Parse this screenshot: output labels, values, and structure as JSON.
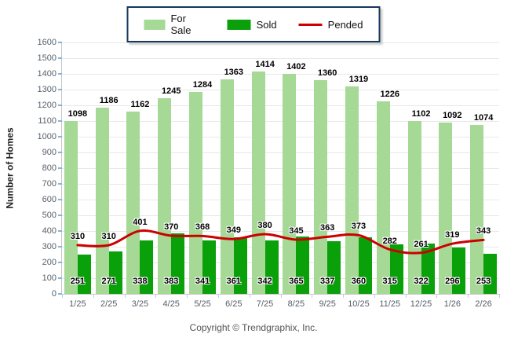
{
  "legend": {
    "items": [
      {
        "label": "For Sale"
      },
      {
        "label": "Sold"
      },
      {
        "label": "Pended"
      }
    ]
  },
  "copyright": "Copyright © Trendgraphix, Inc.",
  "colors": {
    "for_sale": "#a5d995",
    "sold": "#0aa00a",
    "pended": "#cc0000",
    "grid": "#e8e8e8",
    "axis": "#c6c6c6",
    "tick_text": "#57606a",
    "legend_border": "#17375d"
  },
  "chart_data": {
    "type": "bar",
    "title": "",
    "xlabel": "",
    "ylabel": "Number of Homes",
    "ylim": [
      0,
      1600
    ],
    "yticks": [
      0,
      100,
      200,
      300,
      400,
      500,
      600,
      700,
      800,
      900,
      1000,
      1100,
      1200,
      1300,
      1400,
      1500,
      1600
    ],
    "grid": true,
    "legend_position": "top-center",
    "categories": [
      "1/25",
      "2/25",
      "3/25",
      "4/25",
      "5/25",
      "6/25",
      "7/25",
      "8/25",
      "9/25",
      "10/25",
      "11/25",
      "12/25",
      "1/26",
      "2/26"
    ],
    "series": [
      {
        "name": "For Sale",
        "type": "bar",
        "color": "#a5d995",
        "values": [
          1098,
          1186,
          1162,
          1245,
          1284,
          1363,
          1414,
          1402,
          1360,
          1319,
          1226,
          1102,
          1092,
          1074
        ]
      },
      {
        "name": "Sold",
        "type": "bar",
        "color": "#0aa00a",
        "values": [
          251,
          271,
          338,
          383,
          341,
          361,
          342,
          365,
          337,
          360,
          315,
          322,
          296,
          253
        ]
      },
      {
        "name": "Pended",
        "type": "line",
        "color": "#cc0000",
        "values": [
          310,
          310,
          401,
          370,
          368,
          349,
          380,
          345,
          363,
          373,
          282,
          261,
          319,
          343
        ]
      }
    ]
  }
}
